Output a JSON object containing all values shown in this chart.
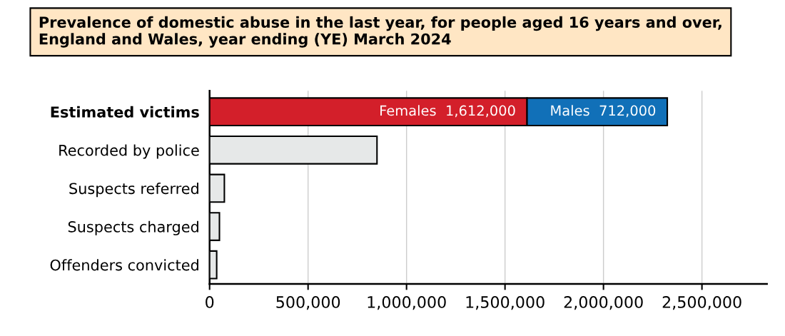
{
  "chart_data": {
    "type": "bar",
    "orientation": "horizontal",
    "stacked": true,
    "title": "Prevalence of domestic abuse in the last year, for people aged 16 years and over, England and Wales, year ending (YE) March 2024",
    "categories": [
      "Estimated victims",
      "Recorded by police",
      "Suspects referred",
      "Suspects charged",
      "Offenders convicted"
    ],
    "series": [
      {
        "name": "Females",
        "color": "#d31f2a",
        "values": [
          1612000,
          null,
          null,
          null,
          null
        ],
        "value_labels": [
          "1,612,000",
          null,
          null,
          null,
          null
        ]
      },
      {
        "name": "Males",
        "color": "#1170b8",
        "values": [
          712000,
          null,
          null,
          null,
          null
        ],
        "value_labels": [
          "712,000",
          null,
          null,
          null,
          null
        ]
      },
      {
        "color": "#e6e8e8",
        "values": [
          null,
          850000,
          75000,
          50000,
          36000
        ]
      }
    ],
    "xlim": [
      0,
      2830000
    ],
    "xticks": [
      {
        "value": 0,
        "label": "0"
      },
      {
        "value": 500000,
        "label": "500,000"
      },
      {
        "value": 1000000,
        "label": "1,000,000"
      },
      {
        "value": 1500000,
        "label": "1,500,000"
      },
      {
        "value": 2000000,
        "label": "2,000,000"
      },
      {
        "value": 2500000,
        "label": "2,500,000"
      }
    ],
    "grid": "x",
    "legend": false
  }
}
